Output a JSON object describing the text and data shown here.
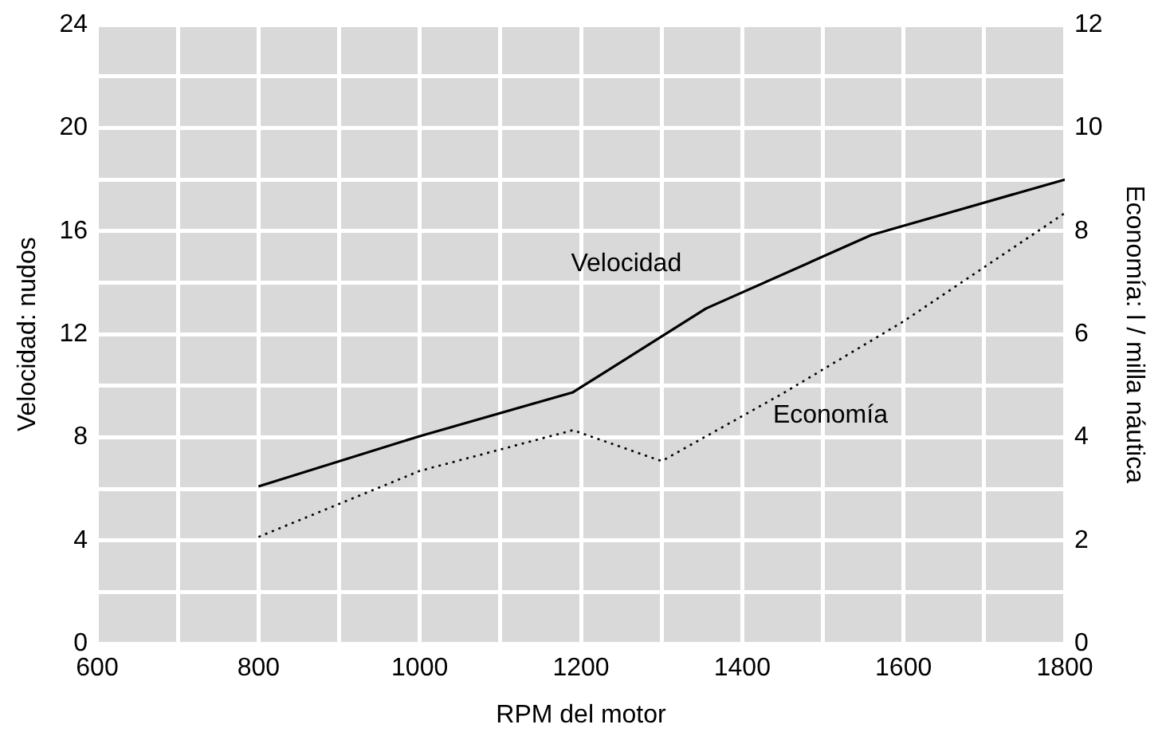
{
  "chart_data": {
    "type": "line",
    "xlabel": "RPM del motor",
    "ylabel": "Velocidad: nudos",
    "y2label": "Economía: l / milla náutica",
    "xlim": [
      600,
      1800
    ],
    "xticks": [
      600,
      {
        "value": 700,
        "label": null
      },
      800,
      {
        "value": 900,
        "label": null
      },
      1000,
      {
        "value": 1100,
        "label": null
      },
      1200,
      {
        "value": 1300,
        "label": null
      },
      1400,
      {
        "value": 1500,
        "label": null
      },
      1600,
      {
        "value": 1700,
        "label": null
      },
      1800
    ],
    "ylim": [
      0,
      24
    ],
    "yticks": [
      0,
      {
        "value": 2,
        "label": null
      },
      4,
      {
        "value": 6,
        "label": null
      },
      8,
      {
        "value": 10,
        "label": null
      },
      12,
      {
        "value": 14,
        "label": null
      },
      16,
      {
        "value": 18,
        "label": null
      },
      20,
      {
        "value": 22,
        "label": null
      },
      24
    ],
    "y2lim": [
      0,
      12
    ],
    "y2ticks": [
      0,
      2,
      4,
      6,
      8,
      10,
      12
    ],
    "grid": true,
    "marker": "none",
    "series": [
      {
        "name": "Velocidad",
        "color": "#000000",
        "line_style": "solid",
        "x": [
          800,
          1000,
          1190,
          1355,
          1560,
          1800
        ],
        "values": [
          6.1,
          8.05,
          9.75,
          13.0,
          15.85,
          18.0
        ]
      },
      {
        "name": "Economía",
        "color": "#000000",
        "line_style": "dotted",
        "axis": "y2",
        "x": [
          800,
          1000,
          1190,
          1300,
          1450,
          1600,
          1800
        ],
        "values": [
          2.07,
          3.35,
          4.14,
          3.54,
          4.85,
          6.25,
          8.35
        ]
      }
    ]
  }
}
